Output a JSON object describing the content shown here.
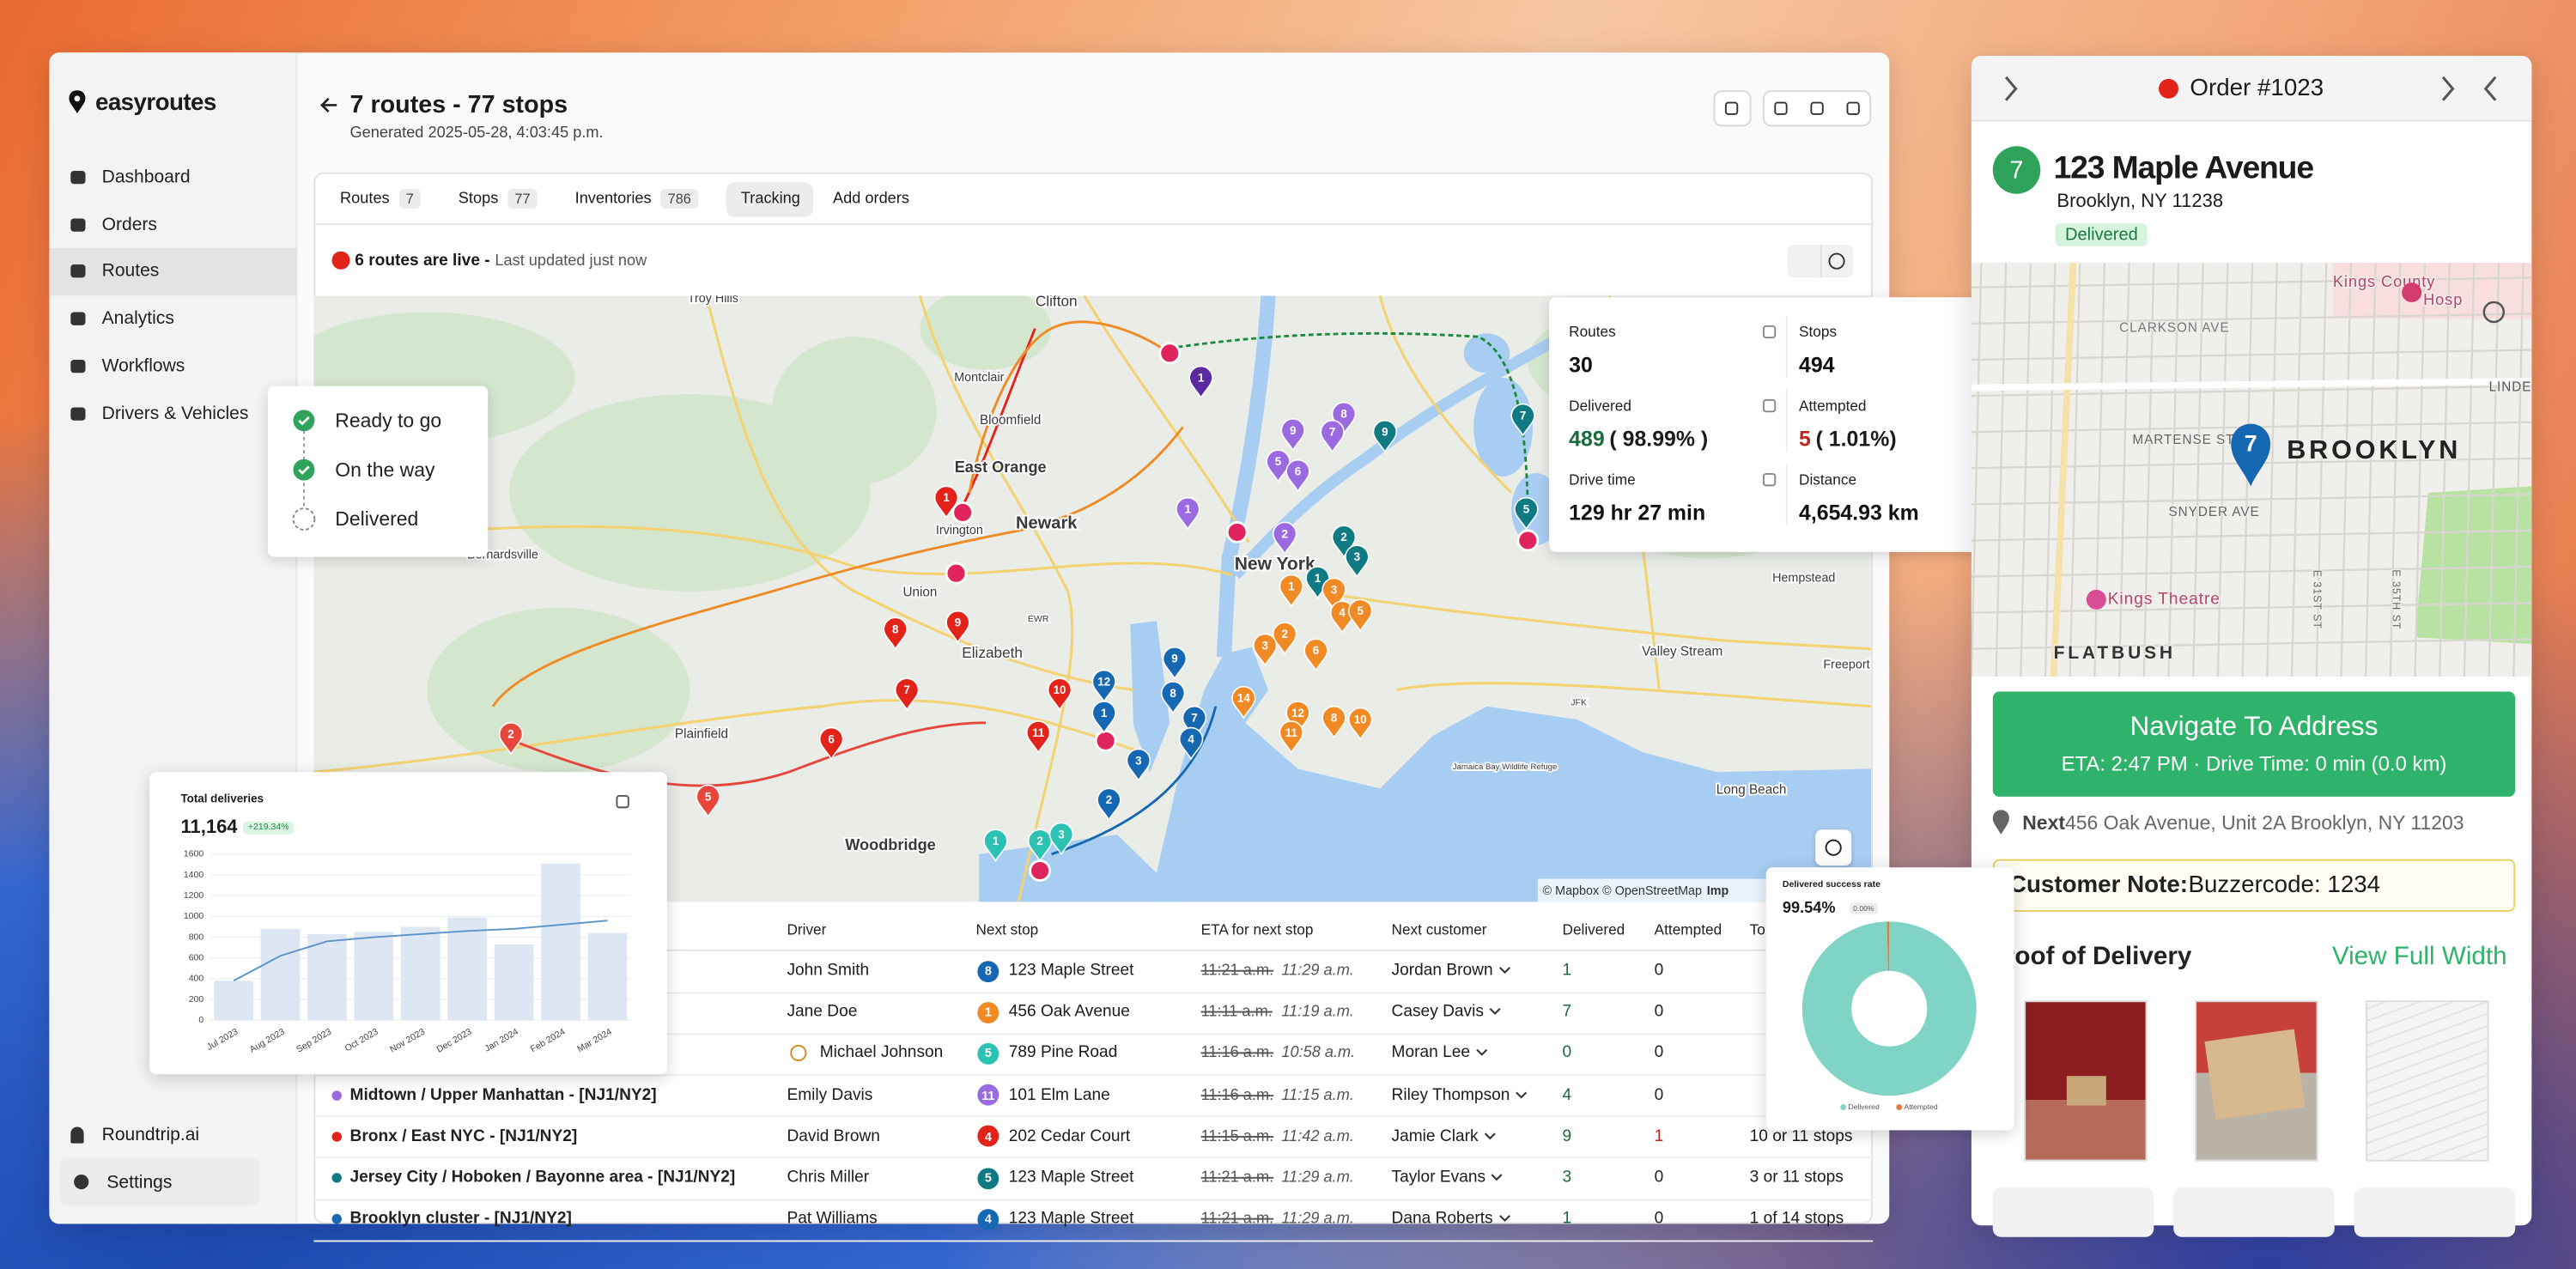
{
  "sidebar": {
    "brand": "easyroutes",
    "nav": [
      "Dashboard",
      "Orders",
      "Routes",
      "Analytics",
      "Workflows",
      "Drivers & Vehicles"
    ],
    "account": "Roundtrip.ai",
    "settings": "Settings"
  },
  "header": {
    "title": "7 routes - 77 stops",
    "subtitle": "Generated 2025-05-28, 4:03:45 p.m."
  },
  "tabs": [
    {
      "label": "Routes",
      "count": "7"
    },
    {
      "label": "Stops",
      "count": "77"
    },
    {
      "label": "Inventories",
      "count": "786"
    },
    {
      "label": "Tracking"
    },
    {
      "label": "Add orders"
    }
  ],
  "live": {
    "status": "6 routes are live -",
    "updated": "Last updated just now"
  },
  "stats": [
    {
      "label": "Routes",
      "value": "30"
    },
    {
      "label": "Stops",
      "value": "494"
    },
    {
      "label": "Delivered",
      "value": "489",
      "extra": "( 98.99% )"
    },
    {
      "label": "Attempted",
      "value": "5",
      "extra": "( 1.01%)"
    },
    {
      "label": "Drive time",
      "value": "129 hr 27 min"
    },
    {
      "label": "Distance",
      "value": "4,654.93 km"
    }
  ],
  "map": {
    "places": [
      "Troy Hills",
      "Clifton",
      "Montclair",
      "Bloomfield",
      "East Orange",
      "Newark",
      "Irvington",
      "Union",
      "Elizabeth",
      "Bernardsville",
      "Plainfield",
      "Woodbridge",
      "New York",
      "Valley Stream",
      "Hempstead",
      "Freeport",
      "Long Beach",
      "Jamaica Bay Wildlife Refuge",
      "JFK",
      "EWR"
    ],
    "pins": [
      {
        "label": "1",
        "color": "#5b2a9e"
      },
      {
        "label": "9",
        "color": "#9b6ae0"
      },
      {
        "label": "8",
        "color": "#9b6ae0"
      },
      {
        "label": "7",
        "color": "#9b6ae0"
      },
      {
        "label": "5",
        "color": "#9b6ae0"
      },
      {
        "label": "6",
        "color": "#9b6ae0"
      },
      {
        "label": "1",
        "color": "#9b6ae0"
      },
      {
        "label": "2",
        "color": "#9b6ae0"
      },
      {
        "label": "9",
        "color": "#0f7a84"
      },
      {
        "label": "7",
        "color": "#0f7a84"
      },
      {
        "label": "5",
        "color": "#0f7a84"
      },
      {
        "label": "2",
        "color": "#0f7a84"
      },
      {
        "label": "3",
        "color": "#0f7a84"
      },
      {
        "label": "1",
        "color": "#0f7a84"
      },
      {
        "label": "1",
        "color": "#f08a24"
      },
      {
        "label": "3",
        "color": "#f08a24"
      },
      {
        "label": "4",
        "color": "#f08a24"
      },
      {
        "label": "5",
        "color": "#f08a24"
      },
      {
        "label": "2",
        "color": "#f08a24"
      },
      {
        "label": "3",
        "color": "#f08a24"
      },
      {
        "label": "6",
        "color": "#f08a24"
      },
      {
        "label": "14",
        "color": "#f08a24"
      },
      {
        "label": "12",
        "color": "#f08a24"
      },
      {
        "label": "8",
        "color": "#f08a24"
      },
      {
        "label": "10",
        "color": "#f08a24"
      },
      {
        "label": "11",
        "color": "#f08a24"
      },
      {
        "label": "1",
        "color": "#e2231a"
      },
      {
        "label": "8",
        "color": "#e2231a"
      },
      {
        "label": "9",
        "color": "#e2231a"
      },
      {
        "label": "7",
        "color": "#e2231a"
      },
      {
        "label": "10",
        "color": "#e2231a"
      },
      {
        "label": "11",
        "color": "#e2231a"
      },
      {
        "label": "6",
        "color": "#e2231a"
      },
      {
        "label": "2",
        "color": "#e8453c"
      },
      {
        "label": "5",
        "color": "#e8453c"
      },
      {
        "label": "12",
        "color": "#1668b3"
      },
      {
        "label": "9",
        "color": "#1668b3"
      },
      {
        "label": "8",
        "color": "#1668b3"
      },
      {
        "label": "7",
        "color": "#1668b3"
      },
      {
        "label": "1",
        "color": "#1668b3"
      },
      {
        "label": "4",
        "color": "#1668b3"
      },
      {
        "label": "3",
        "color": "#1668b3"
      },
      {
        "label": "2",
        "color": "#1668b3"
      },
      {
        "label": "1",
        "color": "#2cc2b3"
      },
      {
        "label": "2",
        "color": "#2cc2b3"
      },
      {
        "label": "3",
        "color": "#2cc2b3"
      }
    ],
    "attribution": "© Mapbox © OpenStreetMap",
    "improve": "Imp"
  },
  "legend": [
    "Ready to go",
    "On the way",
    "Delivered"
  ],
  "table": {
    "columns": [
      "Driver",
      "Next stop",
      "ETA for next stop",
      "Next customer",
      "Delivered",
      "Attempted",
      "To"
    ],
    "rows": [
      {
        "driver": "John Smith",
        "stop": "8",
        "stop_color": "#1668b3",
        "next_stop": "123 Maple Street",
        "eta_old": "11:21 a.m.",
        "eta_new": "11:29 a.m.",
        "customer": "Jordan Brown",
        "delivered": "1",
        "attempted": "0"
      },
      {
        "driver": "Jane Doe",
        "stop": "1",
        "stop_color": "#f08a24",
        "next_stop": "456 Oak Avenue",
        "eta_old": "11:11 a.m.",
        "eta_new": "11:19 a.m.",
        "customer": "Casey Davis",
        "delivered": "7",
        "attempted": "0"
      },
      {
        "driver": "Michael Johnson",
        "stop": "5",
        "stop_color": "#2cc2b3",
        "next_stop": "789 Pine Road",
        "eta_old": "11:16 a.m.",
        "eta_new": "10:58 a.m.",
        "customer": "Moran Lee",
        "delivered": "0",
        "attempted": "0"
      },
      {
        "route": "Midtown / Upper Manhattan - [NJ1/NY2]",
        "route_color": "#9b6ae0",
        "driver": "Emily Davis",
        "stop": "11",
        "stop_color": "#9b6ae0",
        "next_stop": "101 Elm Lane",
        "eta_old": "11:16 a.m.",
        "eta_new": "11:15 a.m.",
        "customer": "Riley Thompson",
        "delivered": "4",
        "attempted": "0"
      },
      {
        "route": "Bronx / East NYC - [NJ1/NY2]",
        "route_color": "#e2231a",
        "driver": "David Brown",
        "stop": "4",
        "stop_color": "#e2231a",
        "next_stop": "202 Cedar Court",
        "eta_old": "11:15 a.m.",
        "eta_new": "11:42 a.m.",
        "customer": "Jamie Clark",
        "delivered": "9",
        "attempted": "1",
        "total": "10 or 11 stops"
      },
      {
        "route": "Jersey City / Hoboken / Bayonne area - [NJ1/NY2]",
        "route_color": "#0f7a84",
        "driver": "Chris Miller",
        "stop": "5",
        "stop_color": "#0f7a84",
        "next_stop": "123 Maple Street",
        "eta_old": "11:21 a.m.",
        "eta_new": "11:29 a.m.",
        "customer": "Taylor Evans",
        "delivered": "3",
        "attempted": "0",
        "total": "3 or 11 stops"
      },
      {
        "route": "Brooklyn cluster - [NJ1/NY2]",
        "route_color": "#1668b3",
        "driver": "Pat Williams",
        "stop": "4",
        "stop_color": "#1668b3",
        "next_stop": "123 Maple Street",
        "eta_old": "11:21 a.m.",
        "eta_new": "11:29 a.m.",
        "customer": "Dana Roberts",
        "delivered": "1",
        "attempted": "0",
        "total": "1 of 14 stops"
      }
    ]
  },
  "chart_data": [
    {
      "type": "bar",
      "title": "Total deliveries",
      "value": "11,164",
      "badge": "+219.34%",
      "categories": [
        "Jul 2023",
        "Aug 2023",
        "Sep 2023",
        "Oct 2023",
        "Nov 2023",
        "Dec 2023",
        "Jan 2024",
        "Feb 2024",
        "Mar 2024"
      ],
      "series": [
        {
          "type": "bar",
          "color": "#dde7f3",
          "values": [
            380,
            880,
            830,
            850,
            900,
            990,
            730,
            1510,
            840
          ]
        },
        {
          "type": "line",
          "color": "#5b93c9",
          "values": [
            380,
            620,
            760,
            800,
            830,
            860,
            880,
            920,
            960
          ]
        }
      ],
      "ylim": [
        0,
        1600
      ],
      "yticks": [
        0,
        200,
        400,
        600,
        800,
        1000,
        1200,
        1400,
        1600
      ],
      "grid": true
    },
    {
      "type": "pie",
      "title": "Delivered success rate",
      "value": "99.54%",
      "badge": "0.00%",
      "series": [
        {
          "name": "Delivered",
          "color": "#7fd4c5",
          "values": [
            99.54
          ]
        },
        {
          "name": "Attempted",
          "color": "#e07b39",
          "values": [
            0.46
          ]
        }
      ]
    }
  ],
  "order": {
    "title": "Order #1023",
    "stop": "7",
    "address": "123 Maple Avenue",
    "city": "Brooklyn, NY 11238",
    "status": "Delivered",
    "map_labels": [
      "Kings County",
      "Hosp",
      "CLARKSON AVE",
      "LINDE",
      "MARTENSE ST",
      "BROOKLYN",
      "SNYDER AVE",
      "Kings Theatre",
      "FLATBUSH",
      "E 31ST ST",
      "E 35TH ST"
    ],
    "map_pin": "7",
    "navigate": "Navigate To Address",
    "eta": "ETA: 2:47 PM · Drive Time: 0 min (0.0 km)",
    "next_label": "Next",
    "next_address": "456 Oak Avenue, Unit 2A Brooklyn, NY 11203",
    "note_label": "Customer Note:",
    "note": "Buzzercode: 1234",
    "proof": "Proof of Delivery",
    "view_full": "View Full Width"
  }
}
